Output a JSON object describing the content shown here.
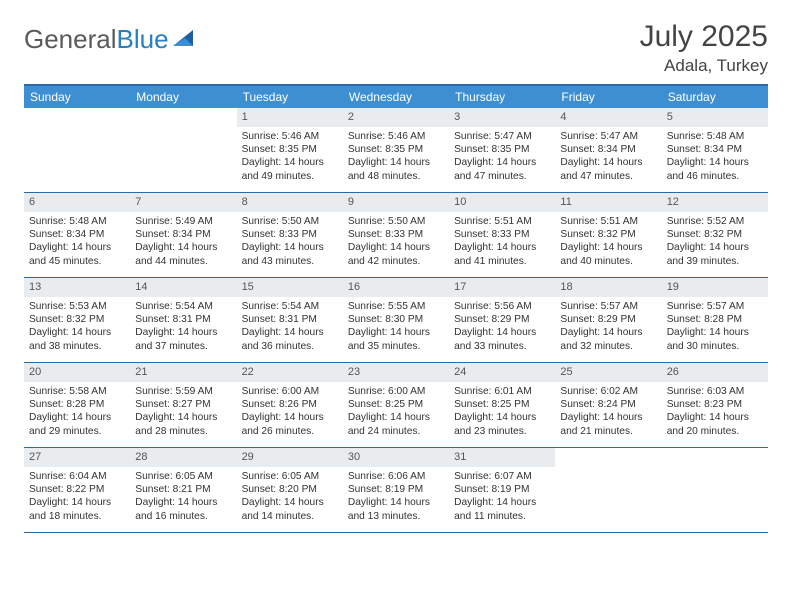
{
  "brand": {
    "part1": "General",
    "part2": "Blue"
  },
  "title": {
    "month": "July 2025",
    "location": "Adala, Turkey"
  },
  "colors": {
    "header_bg": "#3d8fd1",
    "border": "#2a6aa8",
    "daynum_bg": "#e9ecef",
    "text": "#333333",
    "brand_gray": "#5a5a5a",
    "brand_blue": "#2a7fbf"
  },
  "dayNames": [
    "Sunday",
    "Monday",
    "Tuesday",
    "Wednesday",
    "Thursday",
    "Friday",
    "Saturday"
  ],
  "firstDayOffset": 2,
  "daysInMonth": 31,
  "days": {
    "1": {
      "sunrise": "5:46 AM",
      "sunset": "8:35 PM",
      "dayh": 14,
      "daym": 49
    },
    "2": {
      "sunrise": "5:46 AM",
      "sunset": "8:35 PM",
      "dayh": 14,
      "daym": 48
    },
    "3": {
      "sunrise": "5:47 AM",
      "sunset": "8:35 PM",
      "dayh": 14,
      "daym": 47
    },
    "4": {
      "sunrise": "5:47 AM",
      "sunset": "8:34 PM",
      "dayh": 14,
      "daym": 47
    },
    "5": {
      "sunrise": "5:48 AM",
      "sunset": "8:34 PM",
      "dayh": 14,
      "daym": 46
    },
    "6": {
      "sunrise": "5:48 AM",
      "sunset": "8:34 PM",
      "dayh": 14,
      "daym": 45
    },
    "7": {
      "sunrise": "5:49 AM",
      "sunset": "8:34 PM",
      "dayh": 14,
      "daym": 44
    },
    "8": {
      "sunrise": "5:50 AM",
      "sunset": "8:33 PM",
      "dayh": 14,
      "daym": 43
    },
    "9": {
      "sunrise": "5:50 AM",
      "sunset": "8:33 PM",
      "dayh": 14,
      "daym": 42
    },
    "10": {
      "sunrise": "5:51 AM",
      "sunset": "8:33 PM",
      "dayh": 14,
      "daym": 41
    },
    "11": {
      "sunrise": "5:51 AM",
      "sunset": "8:32 PM",
      "dayh": 14,
      "daym": 40
    },
    "12": {
      "sunrise": "5:52 AM",
      "sunset": "8:32 PM",
      "dayh": 14,
      "daym": 39
    },
    "13": {
      "sunrise": "5:53 AM",
      "sunset": "8:32 PM",
      "dayh": 14,
      "daym": 38
    },
    "14": {
      "sunrise": "5:54 AM",
      "sunset": "8:31 PM",
      "dayh": 14,
      "daym": 37
    },
    "15": {
      "sunrise": "5:54 AM",
      "sunset": "8:31 PM",
      "dayh": 14,
      "daym": 36
    },
    "16": {
      "sunrise": "5:55 AM",
      "sunset": "8:30 PM",
      "dayh": 14,
      "daym": 35
    },
    "17": {
      "sunrise": "5:56 AM",
      "sunset": "8:29 PM",
      "dayh": 14,
      "daym": 33
    },
    "18": {
      "sunrise": "5:57 AM",
      "sunset": "8:29 PM",
      "dayh": 14,
      "daym": 32
    },
    "19": {
      "sunrise": "5:57 AM",
      "sunset": "8:28 PM",
      "dayh": 14,
      "daym": 30
    },
    "20": {
      "sunrise": "5:58 AM",
      "sunset": "8:28 PM",
      "dayh": 14,
      "daym": 29
    },
    "21": {
      "sunrise": "5:59 AM",
      "sunset": "8:27 PM",
      "dayh": 14,
      "daym": 28
    },
    "22": {
      "sunrise": "6:00 AM",
      "sunset": "8:26 PM",
      "dayh": 14,
      "daym": 26
    },
    "23": {
      "sunrise": "6:00 AM",
      "sunset": "8:25 PM",
      "dayh": 14,
      "daym": 24
    },
    "24": {
      "sunrise": "6:01 AM",
      "sunset": "8:25 PM",
      "dayh": 14,
      "daym": 23
    },
    "25": {
      "sunrise": "6:02 AM",
      "sunset": "8:24 PM",
      "dayh": 14,
      "daym": 21
    },
    "26": {
      "sunrise": "6:03 AM",
      "sunset": "8:23 PM",
      "dayh": 14,
      "daym": 20
    },
    "27": {
      "sunrise": "6:04 AM",
      "sunset": "8:22 PM",
      "dayh": 14,
      "daym": 18
    },
    "28": {
      "sunrise": "6:05 AM",
      "sunset": "8:21 PM",
      "dayh": 14,
      "daym": 16
    },
    "29": {
      "sunrise": "6:05 AM",
      "sunset": "8:20 PM",
      "dayh": 14,
      "daym": 14
    },
    "30": {
      "sunrise": "6:06 AM",
      "sunset": "8:19 PM",
      "dayh": 14,
      "daym": 13
    },
    "31": {
      "sunrise": "6:07 AM",
      "sunset": "8:19 PM",
      "dayh": 14,
      "daym": 11
    }
  },
  "labels": {
    "sunrise": "Sunrise:",
    "sunset": "Sunset:",
    "daylight": "Daylight:",
    "hours": "hours",
    "and": "and",
    "minutes": "minutes."
  }
}
